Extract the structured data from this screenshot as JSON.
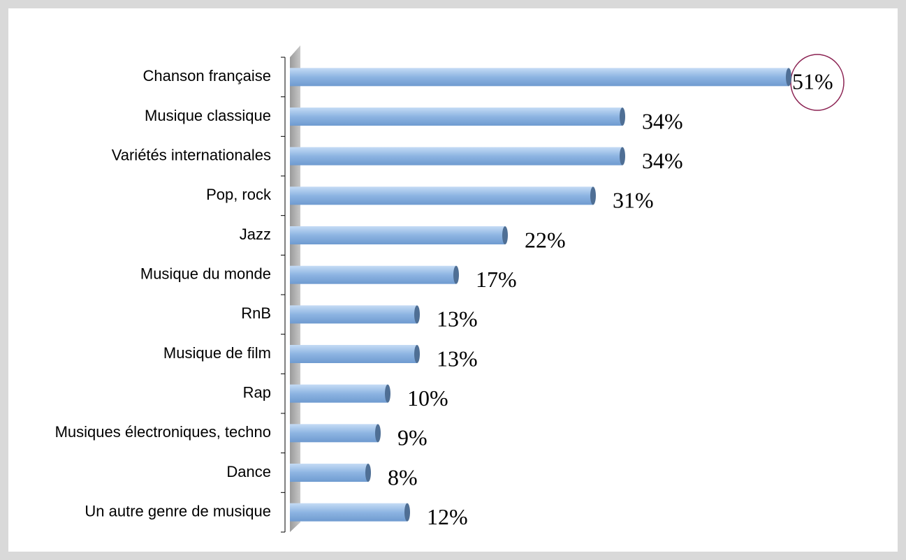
{
  "chart_data": {
    "type": "bar",
    "orientation": "horizontal",
    "categories": [
      "Chanson française",
      "Musique classique",
      "Variétés internationales",
      "Pop, rock",
      "Jazz",
      "Musique du monde",
      "RnB",
      "Musique de film",
      "Rap",
      "Musiques électroniques, techno",
      "Dance",
      "Un autre genre de musique"
    ],
    "values": [
      51,
      34,
      34,
      31,
      22,
      17,
      13,
      13,
      10,
      9,
      8,
      12
    ],
    "value_labels": [
      "51%",
      "34%",
      "34%",
      "31%",
      "22%",
      "17%",
      "13%",
      "13%",
      "10%",
      "9%",
      "8%",
      "12%"
    ],
    "color": "#8db4e2"
  }
}
